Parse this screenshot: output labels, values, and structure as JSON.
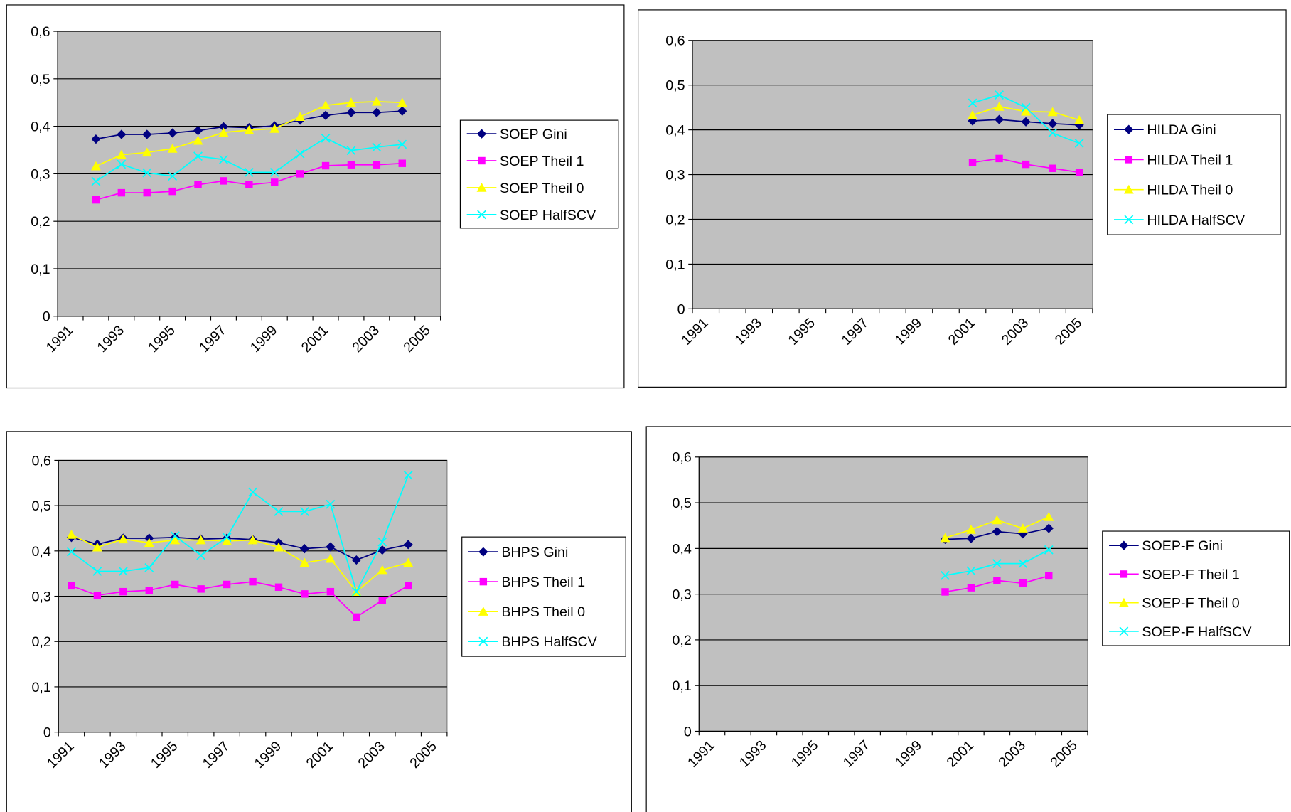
{
  "chart_data": [
    {
      "type": "line",
      "grid": true,
      "legend": "right",
      "ylim": [
        0,
        0.6
      ],
      "yticks": [
        0,
        {
          "value": 0.1,
          "label": "0,1"
        },
        {
          "value": 0.2,
          "label": "0,2"
        },
        {
          "value": 0.3,
          "label": "0,3"
        },
        {
          "value": 0.4,
          "label": "0,4"
        },
        {
          "value": 0.5,
          "label": "0,5"
        },
        {
          "value": 0.6,
          "label": "0,6"
        }
      ],
      "categories": [
        "1991",
        null,
        "1993",
        null,
        "1995",
        null,
        "1997",
        null,
        "1999",
        null,
        "2001",
        null,
        "2003",
        null,
        "2005"
      ],
      "series": [
        {
          "name": "SOEP Gini",
          "color": "#000080",
          "marker": "diamond",
          "values": [
            null,
            0.373,
            0.383,
            0.383,
            0.386,
            0.391,
            0.399,
            0.397,
            0.401,
            0.413,
            0.423,
            0.429,
            0.429,
            0.432,
            null
          ]
        },
        {
          "name": "SOEP Theil 1",
          "color": "#ff00ff",
          "marker": "square",
          "values": [
            null,
            0.245,
            0.26,
            0.26,
            0.263,
            0.277,
            0.285,
            0.277,
            0.282,
            0.3,
            0.317,
            0.319,
            0.319,
            0.322,
            null
          ]
        },
        {
          "name": "SOEP Theil 0",
          "color": "#ffff00",
          "marker": "triangle",
          "values": [
            null,
            0.316,
            0.34,
            0.345,
            0.353,
            0.37,
            0.387,
            0.392,
            0.395,
            0.42,
            0.444,
            0.45,
            0.452,
            0.45,
            null
          ]
        },
        {
          "name": "SOEP HalfSCV",
          "color": "#00ffff",
          "marker": "cross",
          "values": [
            null,
            0.284,
            0.32,
            0.302,
            0.295,
            0.337,
            0.33,
            0.303,
            0.303,
            0.342,
            0.375,
            0.349,
            0.356,
            0.362,
            null
          ]
        }
      ]
    },
    {
      "type": "line",
      "grid": true,
      "legend": "right",
      "ylim": [
        0,
        0.6
      ],
      "yticks": [
        0,
        {
          "value": 0.1,
          "label": "0,1"
        },
        {
          "value": 0.2,
          "label": "0,2"
        },
        {
          "value": 0.3,
          "label": "0,3"
        },
        {
          "value": 0.4,
          "label": "0,4"
        },
        {
          "value": 0.5,
          "label": "0,5"
        },
        {
          "value": 0.6,
          "label": "0,6"
        }
      ],
      "categories": [
        "1991",
        null,
        "1993",
        null,
        "1995",
        null,
        "1997",
        null,
        "1999",
        null,
        "2001",
        null,
        "2003",
        null,
        "2005"
      ],
      "series": [
        {
          "name": "HILDA Gini",
          "color": "#000080",
          "marker": "diamond",
          "values": [
            null,
            null,
            null,
            null,
            null,
            null,
            null,
            null,
            null,
            null,
            0.42,
            0.423,
            0.418,
            0.414,
            0.411
          ]
        },
        {
          "name": "HILDA Theil 1",
          "color": "#ff00ff",
          "marker": "square",
          "values": [
            null,
            null,
            null,
            null,
            null,
            null,
            null,
            null,
            null,
            null,
            0.327,
            0.336,
            0.323,
            0.314,
            0.305
          ]
        },
        {
          "name": "HILDA Theil 0",
          "color": "#ffff00",
          "marker": "triangle",
          "values": [
            null,
            null,
            null,
            null,
            null,
            null,
            null,
            null,
            null,
            null,
            0.433,
            0.452,
            0.441,
            0.44,
            0.422
          ]
        },
        {
          "name": "HILDA HalfSCV",
          "color": "#00ffff",
          "marker": "cross",
          "values": [
            null,
            null,
            null,
            null,
            null,
            null,
            null,
            null,
            null,
            null,
            0.46,
            0.478,
            0.45,
            0.393,
            0.37
          ]
        }
      ]
    },
    {
      "type": "line",
      "grid": true,
      "legend": "right",
      "ylim": [
        0,
        0.6
      ],
      "yticks": [
        0,
        {
          "value": 0.1,
          "label": "0,1"
        },
        {
          "value": 0.2,
          "label": "0,2"
        },
        {
          "value": 0.3,
          "label": "0,3"
        },
        {
          "value": 0.4,
          "label": "0,4"
        },
        {
          "value": 0.5,
          "label": "0,5"
        },
        {
          "value": 0.6,
          "label": "0,6"
        }
      ],
      "categories": [
        "1991",
        null,
        "1993",
        null,
        "1995",
        null,
        "1997",
        null,
        "1999",
        null,
        "2001",
        null,
        "2003",
        null,
        "2005"
      ],
      "series": [
        {
          "name": "BHPS Gini",
          "color": "#000080",
          "marker": "diamond",
          "values": [
            0.43,
            0.415,
            0.428,
            0.428,
            0.43,
            0.426,
            0.428,
            0.425,
            0.418,
            0.405,
            0.409,
            0.38,
            0.402,
            0.414,
            null
          ]
        },
        {
          "name": "BHPS Theil 1",
          "color": "#ff00ff",
          "marker": "square",
          "values": [
            0.323,
            0.302,
            0.31,
            0.313,
            0.326,
            0.316,
            0.326,
            0.332,
            0.32,
            0.305,
            0.31,
            0.254,
            0.291,
            0.323,
            null
          ]
        },
        {
          "name": "BHPS Theil 0",
          "color": "#ffff00",
          "marker": "triangle",
          "values": [
            0.436,
            0.408,
            0.426,
            0.418,
            0.424,
            0.424,
            0.422,
            0.424,
            0.408,
            0.374,
            0.383,
            0.31,
            0.358,
            0.374,
            null
          ]
        },
        {
          "name": "BHPS HalfSCV",
          "color": "#00ffff",
          "marker": "cross",
          "values": [
            0.398,
            0.355,
            0.355,
            0.363,
            0.433,
            0.39,
            0.43,
            0.53,
            0.487,
            0.487,
            0.503,
            0.31,
            0.42,
            0.567,
            null
          ]
        }
      ]
    },
    {
      "type": "line",
      "grid": true,
      "legend": "right",
      "ylim": [
        0,
        0.6
      ],
      "yticks": [
        0,
        {
          "value": 0.1,
          "label": "0,1"
        },
        {
          "value": 0.2,
          "label": "0,2"
        },
        {
          "value": 0.3,
          "label": "0,3"
        },
        {
          "value": 0.4,
          "label": "0,4"
        },
        {
          "value": 0.5,
          "label": "0,5"
        },
        {
          "value": 0.6,
          "label": "0,6"
        }
      ],
      "categories": [
        "1991",
        null,
        "1993",
        null,
        "1995",
        null,
        "1997",
        null,
        "1999",
        null,
        "2001",
        null,
        "2003",
        null,
        "2005"
      ],
      "series": [
        {
          "name": "SOEP-F Gini",
          "color": "#000080",
          "marker": "diamond",
          "values": [
            null,
            null,
            null,
            null,
            null,
            null,
            null,
            null,
            null,
            0.42,
            0.422,
            0.437,
            0.432,
            0.444,
            null
          ]
        },
        {
          "name": "SOEP-F Theil 1",
          "color": "#ff00ff",
          "marker": "square",
          "values": [
            null,
            null,
            null,
            null,
            null,
            null,
            null,
            null,
            null,
            0.305,
            0.314,
            0.33,
            0.324,
            0.34,
            null
          ]
        },
        {
          "name": "SOEP-F Theil 0",
          "color": "#ffff00",
          "marker": "triangle",
          "values": [
            null,
            null,
            null,
            null,
            null,
            null,
            null,
            null,
            null,
            0.423,
            0.441,
            0.462,
            0.444,
            0.469,
            null
          ]
        },
        {
          "name": "SOEP-F HalfSCV",
          "color": "#00ffff",
          "marker": "cross",
          "values": [
            null,
            null,
            null,
            null,
            null,
            null,
            null,
            null,
            null,
            0.341,
            0.351,
            0.367,
            0.367,
            0.397,
            null
          ]
        }
      ]
    }
  ]
}
